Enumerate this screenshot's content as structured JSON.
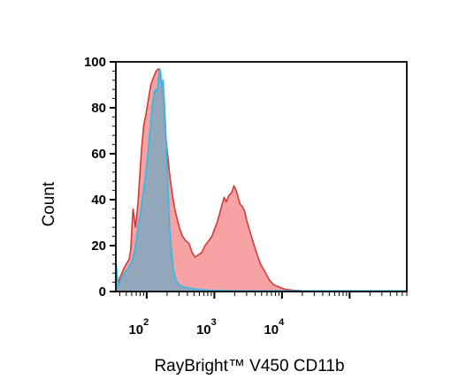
{
  "chart_data": {
    "type": "area",
    "title": "",
    "xlabel": "RayBright™ V450 CD11b",
    "ylabel": "Count",
    "x_scale": "log",
    "xlim": [
      35,
      700000
    ],
    "ylim": [
      0,
      100
    ],
    "yticks": [
      "0",
      "20",
      "40",
      "60",
      "80",
      "100"
    ],
    "xticks": [
      {
        "base": "10",
        "exp": "2",
        "value": 100
      },
      {
        "base": "10",
        "exp": "3",
        "value": 1000
      },
      {
        "base": "10",
        "exp": "4",
        "value": 10000
      }
    ],
    "grid": false,
    "legend": "none",
    "series": [
      {
        "color_fill": "#f7a3a3",
        "color_line": "#d23a3a",
        "x": [
          35,
          38,
          40,
          43,
          46,
          50,
          55,
          58,
          61,
          63,
          65,
          68,
          71,
          75,
          79,
          84,
          90,
          97,
          105,
          115,
          125,
          138,
          150,
          158,
          165,
          175,
          185,
          200,
          220,
          240,
          260,
          285,
          310,
          340,
          380,
          420,
          470,
          520,
          580,
          650,
          730,
          820,
          920,
          1000,
          1100,
          1200,
          1300,
          1400,
          1500,
          1650,
          1800,
          1950,
          2100,
          2250,
          2400,
          2600,
          2800,
          3000,
          3300,
          3700,
          4200,
          4800,
          5500,
          6500,
          7500,
          9000,
          11000,
          14000,
          20000,
          40000,
          100000,
          700000
        ],
        "values": [
          0,
          3,
          6,
          8,
          10,
          12,
          14,
          18,
          30,
          36,
          33,
          28,
          32,
          40,
          50,
          62,
          72,
          77,
          83,
          90,
          93,
          96,
          97,
          95,
          90,
          82,
          72,
          62,
          50,
          42,
          36,
          31,
          27,
          24,
          22,
          21,
          17,
          15,
          16,
          17,
          20,
          22,
          24,
          27,
          30,
          34,
          38,
          41,
          39,
          42,
          43,
          46,
          44,
          41,
          38,
          37,
          35,
          31,
          27,
          22,
          17,
          12,
          9,
          5,
          3,
          2,
          1,
          0.6,
          0.3,
          0.2,
          0.2,
          0.2
        ]
      },
      {
        "color_fill": "#8aa7bd",
        "color_line": "#33b8e6",
        "x": [
          35,
          38,
          40,
          43,
          46,
          50,
          55,
          60,
          65,
          70,
          75,
          80,
          85,
          90,
          95,
          100,
          105,
          110,
          115,
          120,
          125,
          130,
          135,
          140,
          145,
          150,
          155,
          160,
          165,
          170,
          175,
          180,
          190,
          200,
          210,
          220,
          235,
          250,
          270,
          300,
          350,
          420,
          550,
          800,
          2000,
          700000
        ],
        "values": [
          14,
          2,
          4,
          6,
          8,
          9,
          11,
          13,
          17,
          22,
          29,
          33,
          39,
          45,
          50,
          56,
          61,
          68,
          74,
          80,
          84,
          87,
          88,
          87,
          89,
          93,
          97,
          96,
          92,
          89,
          92,
          86,
          72,
          56,
          40,
          26,
          16,
          9,
          5,
          3,
          2,
          1.5,
          1,
          0.6,
          0.3,
          0.3
        ]
      }
    ]
  }
}
